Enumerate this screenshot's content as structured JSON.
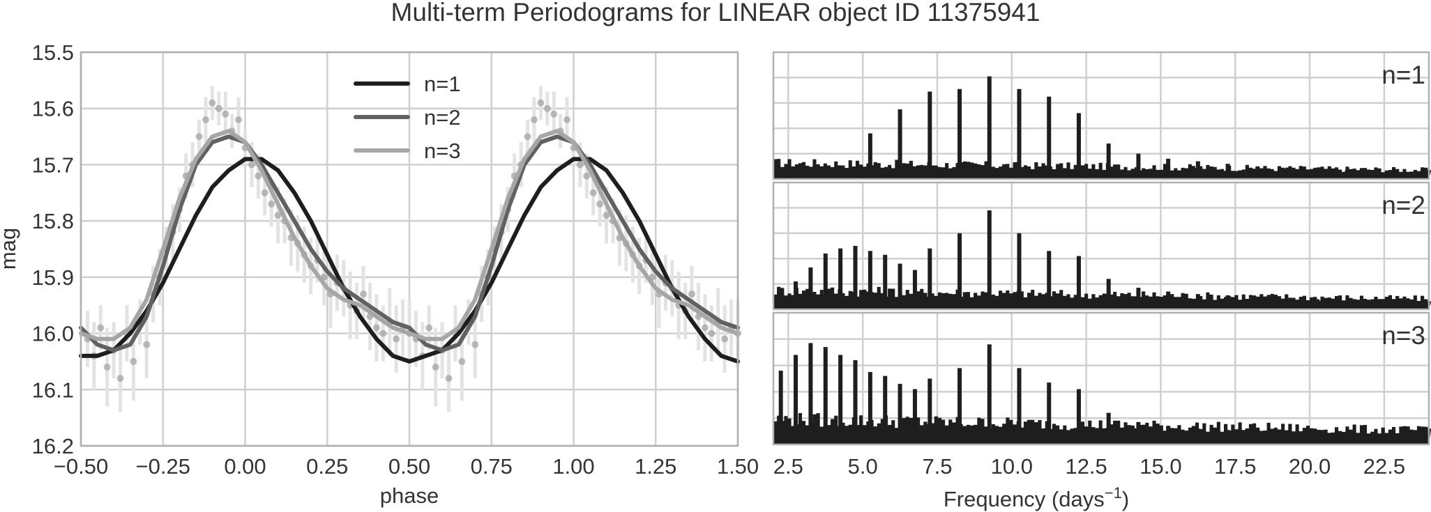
{
  "figure": {
    "title": "Multi-term Periodograms for LINEAR object ID 11375941"
  },
  "chart_data": [
    {
      "type": "scatter",
      "panel": "phased-light-curve",
      "xlabel": "phase",
      "ylabel": "mag",
      "xlim": [
        -0.5,
        1.5
      ],
      "ylim": [
        16.2,
        15.5
      ],
      "y_inverted": true,
      "grid": true,
      "xticks": [
        -0.5,
        -0.25,
        0.0,
        0.25,
        0.5,
        0.75,
        1.0,
        1.25,
        1.5
      ],
      "xtick_labels": [
        "−0.50",
        "−0.25",
        "0.00",
        "0.25",
        "0.50",
        "0.75",
        "1.00",
        "1.25",
        "1.50"
      ],
      "yticks": [
        15.5,
        15.6,
        15.7,
        15.8,
        15.9,
        16.0,
        16.1,
        16.2
      ],
      "ytick_labels": [
        "15.5",
        "15.6",
        "15.7",
        "15.8",
        "15.9",
        "16.0",
        "16.1",
        "16.2"
      ],
      "legend_position": "top-center",
      "data_color": "#9a9a9a",
      "errorbar_color": "#e3e3e3",
      "series": [
        {
          "name": "n=1",
          "color": "#1e1e1e",
          "x": [
            -0.5,
            -0.45,
            -0.4,
            -0.35,
            -0.3,
            -0.25,
            -0.2,
            -0.15,
            -0.1,
            -0.05,
            0.0,
            0.05,
            0.1,
            0.15,
            0.2,
            0.25,
            0.3,
            0.35,
            0.4,
            0.45,
            0.5
          ],
          "y": [
            16.04,
            16.04,
            16.03,
            16.0,
            15.96,
            15.91,
            15.85,
            15.79,
            15.74,
            15.71,
            15.69,
            15.69,
            15.71,
            15.75,
            15.8,
            15.86,
            15.92,
            15.97,
            16.01,
            16.04,
            16.05
          ]
        },
        {
          "name": "n=2",
          "color": "#616161",
          "x": [
            -0.5,
            -0.45,
            -0.4,
            -0.35,
            -0.3,
            -0.25,
            -0.2,
            -0.15,
            -0.1,
            -0.05,
            0.0,
            0.05,
            0.1,
            0.15,
            0.2,
            0.25,
            0.3,
            0.35,
            0.4,
            0.45,
            0.5
          ],
          "y": [
            15.99,
            16.02,
            16.03,
            16.02,
            15.97,
            15.88,
            15.78,
            15.7,
            15.66,
            15.65,
            15.66,
            15.7,
            15.75,
            15.8,
            15.85,
            15.89,
            15.92,
            15.94,
            15.96,
            15.98,
            15.99
          ]
        },
        {
          "name": "n=3",
          "color": "#a6a6a6",
          "x": [
            -0.5,
            -0.45,
            -0.4,
            -0.35,
            -0.3,
            -0.25,
            -0.2,
            -0.15,
            -0.1,
            -0.05,
            0.0,
            0.05,
            0.1,
            0.15,
            0.2,
            0.25,
            0.3,
            0.35,
            0.4,
            0.45,
            0.5
          ],
          "y": [
            16.0,
            16.01,
            16.01,
            15.99,
            15.94,
            15.85,
            15.76,
            15.69,
            15.65,
            15.64,
            15.66,
            15.71,
            15.77,
            15.83,
            15.88,
            15.92,
            15.94,
            15.95,
            15.97,
            15.99,
            16.0
          ]
        }
      ],
      "observations": {
        "x": [
          -0.48,
          -0.46,
          -0.44,
          -0.42,
          -0.4,
          -0.38,
          -0.36,
          -0.34,
          -0.32,
          -0.3,
          -0.28,
          -0.26,
          -0.24,
          -0.22,
          -0.2,
          -0.18,
          -0.16,
          -0.14,
          -0.12,
          -0.1,
          -0.08,
          -0.06,
          -0.04,
          -0.02,
          0.0,
          0.02,
          0.04,
          0.06,
          0.08,
          0.1,
          0.12,
          0.14,
          0.16,
          0.18,
          0.2,
          0.22,
          0.24,
          0.26,
          0.28,
          0.3,
          0.32,
          0.34,
          0.36,
          0.38,
          0.4,
          0.42,
          0.44,
          0.46,
          0.48,
          0.5
        ],
        "y": [
          16.01,
          16.04,
          15.99,
          16.06,
          16.03,
          16.08,
          16.0,
          16.05,
          15.98,
          16.02,
          15.93,
          15.9,
          15.85,
          15.82,
          15.78,
          15.72,
          15.7,
          15.65,
          15.62,
          15.59,
          15.6,
          15.61,
          15.64,
          15.62,
          15.67,
          15.7,
          15.72,
          15.75,
          15.77,
          15.79,
          15.8,
          15.83,
          15.84,
          15.86,
          15.88,
          15.87,
          15.9,
          15.93,
          15.91,
          15.92,
          15.95,
          15.96,
          15.93,
          15.97,
          15.99,
          16.0,
          15.98,
          16.01,
          15.99,
          16.0
        ],
        "dy": [
          0.05,
          0.06,
          0.04,
          0.07,
          0.05,
          0.06,
          0.05,
          0.07,
          0.04,
          0.06,
          0.05,
          0.05,
          0.04,
          0.05,
          0.04,
          0.04,
          0.04,
          0.03,
          0.04,
          0.03,
          0.03,
          0.04,
          0.03,
          0.04,
          0.03,
          0.04,
          0.04,
          0.04,
          0.04,
          0.05,
          0.04,
          0.05,
          0.05,
          0.05,
          0.05,
          0.04,
          0.05,
          0.06,
          0.05,
          0.05,
          0.06,
          0.05,
          0.05,
          0.06,
          0.06,
          0.05,
          0.06,
          0.06,
          0.05,
          0.06
        ]
      }
    },
    {
      "type": "bar",
      "panel": "periodograms",
      "xlabel": "Frequency (days",
      "xlabel_superscript": "−1",
      "xlabel_suffix": ")",
      "xlim": [
        2.0,
        24.0
      ],
      "ylim": [
        0,
        1
      ],
      "grid": true,
      "xticks": [
        2.5,
        5.0,
        7.5,
        10.0,
        12.5,
        15.0,
        17.5,
        20.0,
        22.5
      ],
      "xtick_labels": [
        "2.5",
        "5.0",
        "7.5",
        "10.0",
        "12.5",
        "15.0",
        "17.5",
        "20.0",
        "22.5"
      ],
      "bar_color": "#1e1e1e",
      "series": [
        {
          "name": "n=1",
          "peak_x": [
            5.25,
            6.25,
            7.25,
            8.25,
            9.25,
            10.25,
            11.25,
            12.25,
            13.25,
            14.25,
            15.25,
            16.25,
            17.25,
            18.25,
            19.25,
            20.25,
            21.25,
            22.25
          ],
          "peak_y": [
            0.36,
            0.55,
            0.69,
            0.71,
            0.81,
            0.71,
            0.65,
            0.52,
            0.28,
            0.2,
            0.16,
            0.14,
            0.12,
            0.1,
            0.09,
            0.08,
            0.07,
            0.06
          ],
          "noise_level": 0.12
        },
        {
          "name": "n=2",
          "peak_x": [
            2.75,
            3.25,
            3.75,
            4.25,
            4.75,
            5.25,
            5.75,
            6.25,
            6.75,
            7.25,
            8.25,
            9.25,
            10.25,
            11.25,
            12.25,
            13.25,
            14.25,
            15.25,
            16.25,
            17.25,
            18.25,
            19.25,
            20.25,
            21.25,
            22.25
          ],
          "peak_y": [
            0.22,
            0.33,
            0.44,
            0.48,
            0.5,
            0.46,
            0.43,
            0.36,
            0.31,
            0.48,
            0.6,
            0.78,
            0.6,
            0.46,
            0.42,
            0.24,
            0.17,
            0.14,
            0.12,
            0.11,
            0.1,
            0.09,
            0.08,
            0.07,
            0.06
          ],
          "noise_level": 0.14
        },
        {
          "name": "n=3",
          "peak_x": [
            2.25,
            2.75,
            3.25,
            3.75,
            4.25,
            4.75,
            5.25,
            5.75,
            6.25,
            6.75,
            7.25,
            8.25,
            9.25,
            10.25,
            11.25,
            12.25,
            13.25,
            14.25,
            15.25,
            16.25,
            17.25,
            18.25,
            19.25,
            20.25,
            21.25,
            22.25
          ],
          "peak_y": [
            0.56,
            0.68,
            0.77,
            0.74,
            0.68,
            0.64,
            0.55,
            0.52,
            0.46,
            0.42,
            0.5,
            0.58,
            0.76,
            0.58,
            0.47,
            0.42,
            0.24,
            0.17,
            0.14,
            0.12,
            0.11,
            0.1,
            0.09,
            0.08,
            0.07,
            0.06
          ],
          "noise_level": 0.18
        }
      ]
    }
  ]
}
